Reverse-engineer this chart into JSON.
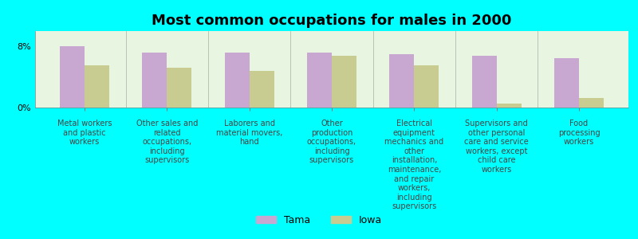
{
  "title": "Most common occupations for males in 2000",
  "background_color": "#00FFFF",
  "plot_bg_color": "#E8F5E0",
  "bar_color_tama": "#C8A8D0",
  "bar_color_iowa": "#C8CC90",
  "categories": [
    "Metal workers\nand plastic\nworkers",
    "Other sales and\nrelated\noccupations,\nincluding\nsupervisors",
    "Laborers and\nmaterial movers,\nhand",
    "Other\nproduction\noccupations,\nincluding\nsupervisors",
    "Electrical\nequipment\nmechanics and\nother\ninstallation,\nmaintenance,\nand repair\nworkers,\nincluding\nsupervisors",
    "Supervisors and\nother personal\ncare and service\nworkers, except\nchild care\nworkers",
    "Food\nprocessing\nworkers"
  ],
  "tama_values": [
    8.0,
    7.2,
    7.2,
    7.2,
    7.0,
    6.8,
    6.5
  ],
  "iowa_values": [
    5.5,
    5.2,
    4.8,
    6.8,
    5.5,
    0.5,
    1.2
  ],
  "ylim": [
    0,
    10
  ],
  "yticks": [
    0,
    8
  ],
  "ytick_labels": [
    "0%",
    "8%"
  ],
  "legend_labels": [
    "Tama",
    "Iowa"
  ],
  "title_fontsize": 13,
  "label_fontsize": 7.0,
  "tick_fontsize": 8
}
